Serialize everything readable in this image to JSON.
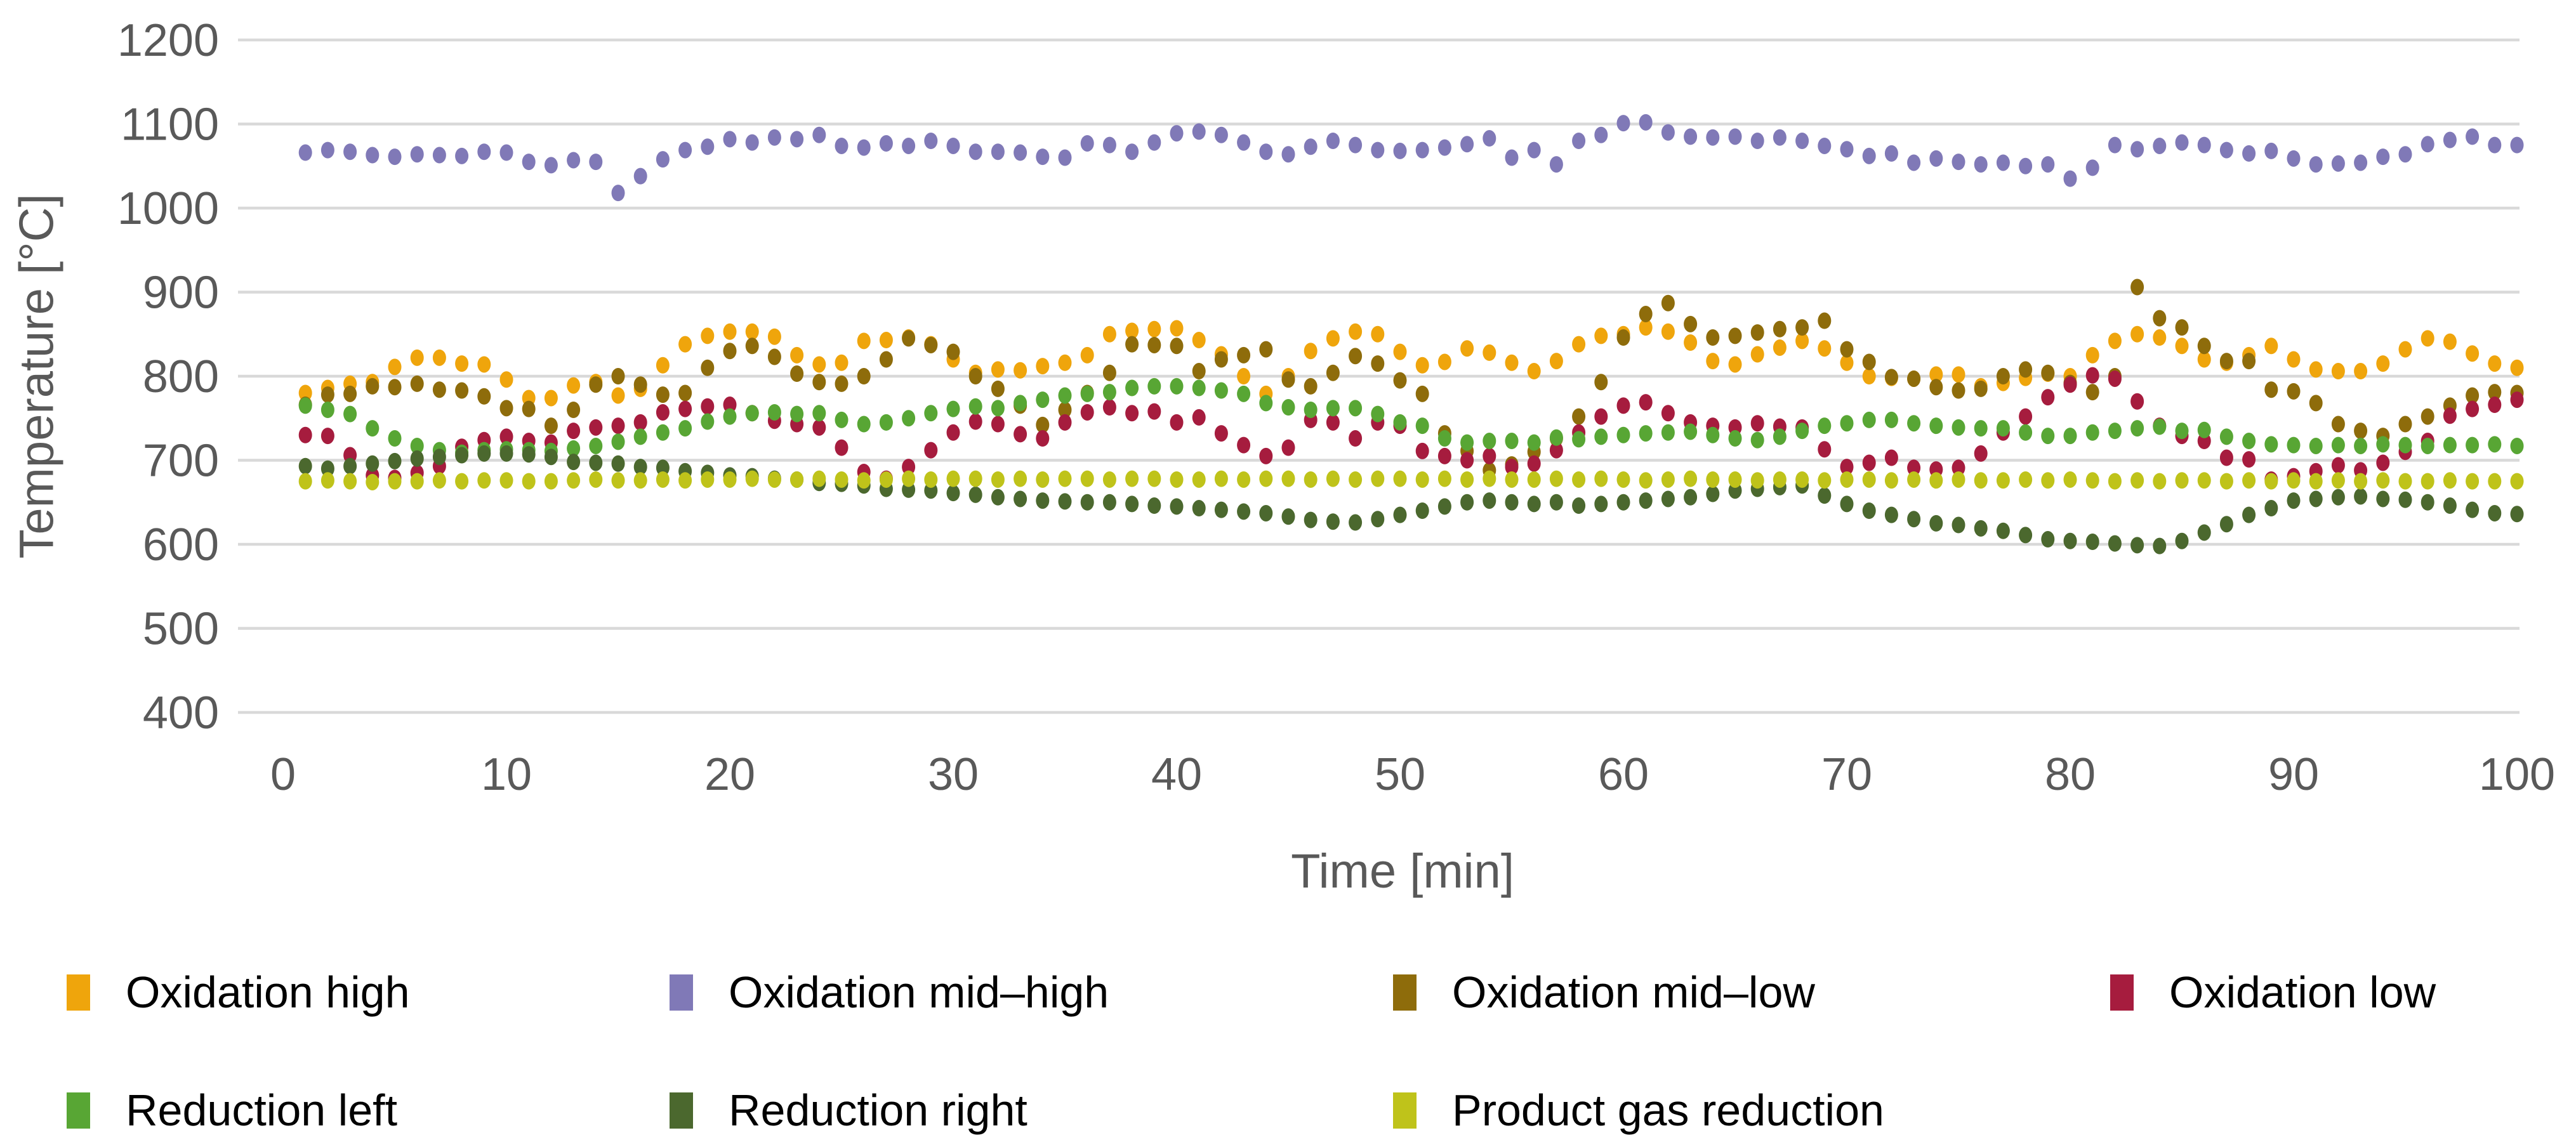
{
  "chart_data": {
    "type": "scatter",
    "title": "",
    "xlabel": "Time [min]",
    "ylabel": "Temperature [°C]",
    "xlim": [
      0,
      100
    ],
    "ylim": [
      400,
      1200
    ],
    "x_ticks": [
      0,
      10,
      20,
      30,
      40,
      50,
      60,
      70,
      80,
      90,
      100
    ],
    "y_ticks": [
      1200,
      1100,
      1000,
      900,
      800,
      700,
      600,
      500,
      400
    ],
    "grid": "horizontal",
    "gridline_color": "#d9d9d9",
    "axis_text_color": "#595959",
    "legend_position": "bottom",
    "x": [
      1,
      2,
      3,
      4,
      5,
      6,
      7,
      8,
      9,
      10,
      11,
      12,
      13,
      14,
      15,
      16,
      17,
      18,
      19,
      20,
      21,
      22,
      23,
      24,
      25,
      26,
      27,
      28,
      29,
      30,
      31,
      32,
      33,
      34,
      35,
      36,
      37,
      38,
      39,
      40,
      41,
      42,
      43,
      44,
      45,
      46,
      47,
      48,
      49,
      50,
      51,
      52,
      53,
      54,
      55,
      56,
      57,
      58,
      59,
      60,
      61,
      62,
      63,
      64,
      65,
      66,
      67,
      68,
      69,
      70,
      71,
      72,
      73,
      74,
      75,
      76,
      77,
      78,
      79,
      80,
      81,
      82,
      83,
      84,
      85,
      86,
      87,
      88,
      89,
      90,
      91,
      92,
      93,
      94,
      95,
      96,
      97,
      98,
      99,
      100
    ],
    "series": [
      {
        "name": "Oxidation high",
        "color": "#efa50c",
        "values": [
          780,
          786,
          791,
          793,
          811,
          822,
          822,
          815,
          814,
          796,
          774,
          774,
          789,
          793,
          777,
          785,
          813,
          838,
          848,
          853,
          853,
          847,
          825,
          814,
          816,
          842,
          843,
          846,
          838,
          820,
          804,
          808,
          807,
          812,
          816,
          825,
          850,
          854,
          856,
          857,
          843,
          826,
          800,
          779,
          800,
          830,
          845,
          853,
          850,
          829,
          813,
          817,
          833,
          828,
          816,
          806,
          818,
          838,
          848,
          850,
          858,
          853,
          840,
          818,
          814,
          826,
          834,
          842,
          833,
          816,
          800,
          798,
          797,
          802,
          802,
          788,
          792,
          798,
          803,
          800,
          825,
          842,
          850,
          846,
          836,
          820,
          816,
          825,
          836,
          820,
          808,
          806,
          806,
          815,
          832,
          845,
          841,
          827,
          815,
          810
        ]
      },
      {
        "name": "Oxidation mid–high",
        "color": "#8079b7",
        "values": [
          1066,
          1069,
          1067,
          1063,
          1061,
          1064,
          1063,
          1062,
          1067,
          1066,
          1055,
          1051,
          1057,
          1055,
          1018,
          1038,
          1058,
          1069,
          1073,
          1082,
          1078,
          1084,
          1082,
          1087,
          1074,
          1072,
          1077,
          1074,
          1080,
          1074,
          1067,
          1067,
          1066,
          1061,
          1060,
          1077,
          1075,
          1067,
          1078,
          1089,
          1091,
          1087,
          1078,
          1067,
          1064,
          1073,
          1080,
          1075,
          1069,
          1068,
          1069,
          1072,
          1076,
          1083,
          1060,
          1069,
          1052,
          1080,
          1087,
          1101,
          1102,
          1090,
          1085,
          1084,
          1085,
          1080,
          1084,
          1080,
          1074,
          1070,
          1062,
          1065,
          1054,
          1059,
          1055,
          1052,
          1054,
          1050,
          1052,
          1035,
          1048,
          1075,
          1070,
          1074,
          1078,
          1075,
          1069,
          1065,
          1068,
          1059,
          1052,
          1053,
          1054,
          1061,
          1064,
          1076,
          1081,
          1085,
          1075,
          1075
        ]
      },
      {
        "name": "Oxidation mid–low",
        "color": "#8e6c0b",
        "values": [
          766,
          778,
          779,
          788,
          787,
          791,
          784,
          783,
          776,
          762,
          761,
          741,
          760,
          790,
          800,
          790,
          778,
          780,
          810,
          830,
          836,
          823,
          803,
          793,
          791,
          800,
          820,
          845,
          837,
          829,
          800,
          785,
          765,
          742,
          760,
          780,
          804,
          838,
          837,
          836,
          806,
          820,
          825,
          832,
          796,
          788,
          804,
          824,
          815,
          795,
          779,
          732,
          711,
          688,
          695,
          710,
          726,
          752,
          793,
          846,
          874,
          887,
          862,
          846,
          848,
          852,
          856,
          858,
          866,
          832,
          817,
          799,
          797,
          787,
          783,
          785,
          800,
          808,
          804,
          792,
          781,
          800,
          906,
          869,
          858,
          836,
          818,
          818,
          784,
          782,
          768,
          743,
          735,
          729,
          743,
          752,
          765,
          777,
          781,
          780
        ]
      },
      {
        "name": "Oxidation low",
        "color": "#a61c3e",
        "values": [
          730,
          729,
          706,
          682,
          679,
          685,
          693,
          716,
          724,
          728,
          723,
          721,
          735,
          739,
          741,
          745,
          757,
          761,
          764,
          766,
          756,
          747,
          743,
          739,
          715,
          686,
          678,
          692,
          712,
          733,
          746,
          743,
          731,
          726,
          745,
          757,
          763,
          756,
          758,
          745,
          751,
          732,
          718,
          705,
          715,
          748,
          745,
          726,
          745,
          741,
          711,
          705,
          700,
          705,
          692,
          696,
          712,
          733,
          752,
          765,
          769,
          756,
          745,
          741,
          739,
          744,
          740,
          739,
          713,
          692,
          697,
          703,
          691,
          689,
          691,
          708,
          733,
          752,
          775,
          790,
          801,
          797,
          770,
          741,
          729,
          723,
          703,
          701,
          677,
          681,
          687,
          694,
          688,
          697,
          710,
          723,
          753,
          761,
          766,
          772
        ]
      },
      {
        "name": "Reduction left",
        "color": "#58a634",
        "values": [
          765,
          760,
          755,
          738,
          726,
          717,
          712,
          709,
          712,
          713,
          712,
          711,
          714,
          717,
          722,
          728,
          733,
          738,
          746,
          752,
          756,
          757,
          755,
          756,
          748,
          743,
          745,
          750,
          756,
          761,
          764,
          762,
          768,
          772,
          777,
          779,
          781,
          786,
          788,
          788,
          786,
          783,
          779,
          768,
          763,
          760,
          762,
          762,
          755,
          745,
          741,
          726,
          721,
          723,
          723,
          721,
          727,
          725,
          728,
          730,
          732,
          733,
          734,
          730,
          726,
          724,
          728,
          735,
          741,
          744,
          748,
          748,
          744,
          741,
          739,
          738,
          738,
          733,
          729,
          729,
          733,
          735,
          738,
          740,
          735,
          736,
          728,
          723,
          719,
          718,
          717,
          718,
          717,
          719,
          718,
          717,
          718,
          718,
          719,
          717
        ]
      },
      {
        "name": "Reduction right",
        "color": "#4b682e",
        "values": [
          693,
          690,
          693,
          696,
          699,
          702,
          704,
          706,
          708,
          708,
          707,
          704,
          698,
          697,
          696,
          692,
          691,
          687,
          685,
          682,
          681,
          678,
          677,
          673,
          672,
          670,
          666,
          665,
          664,
          661,
          659,
          656,
          654,
          652,
          651,
          650,
          650,
          648,
          646,
          645,
          643,
          641,
          639,
          637,
          633,
          629,
          627,
          626,
          630,
          635,
          640,
          645,
          650,
          652,
          650,
          648,
          650,
          646,
          648,
          650,
          652,
          654,
          656,
          660,
          664,
          666,
          668,
          670,
          658,
          648,
          640,
          635,
          630,
          625,
          623,
          619,
          616,
          611,
          606,
          604,
          603,
          601,
          599,
          598,
          604,
          614,
          624,
          635,
          643,
          652,
          654,
          656,
          657,
          654,
          653,
          650,
          646,
          641,
          637,
          636
        ]
      },
      {
        "name": "Product gas reduction",
        "color": "#bfc31a",
        "values": [
          675,
          676,
          675,
          674,
          675,
          675,
          676,
          675,
          676,
          676,
          675,
          675,
          676,
          677,
          676,
          676,
          677,
          676,
          677,
          677,
          678,
          677,
          677,
          678,
          677,
          676,
          677,
          678,
          677,
          678,
          678,
          677,
          678,
          677,
          678,
          678,
          677,
          678,
          678,
          677,
          677,
          678,
          677,
          678,
          678,
          677,
          678,
          677,
          678,
          678,
          677,
          678,
          677,
          678,
          677,
          677,
          678,
          677,
          678,
          677,
          676,
          677,
          678,
          677,
          677,
          676,
          677,
          677,
          676,
          677,
          677,
          676,
          677,
          676,
          677,
          676,
          676,
          677,
          676,
          677,
          676,
          675,
          676,
          675,
          676,
          676,
          675,
          676,
          675,
          676,
          675,
          676,
          675,
          676,
          675,
          675,
          676,
          675,
          675,
          675
        ]
      }
    ]
  }
}
